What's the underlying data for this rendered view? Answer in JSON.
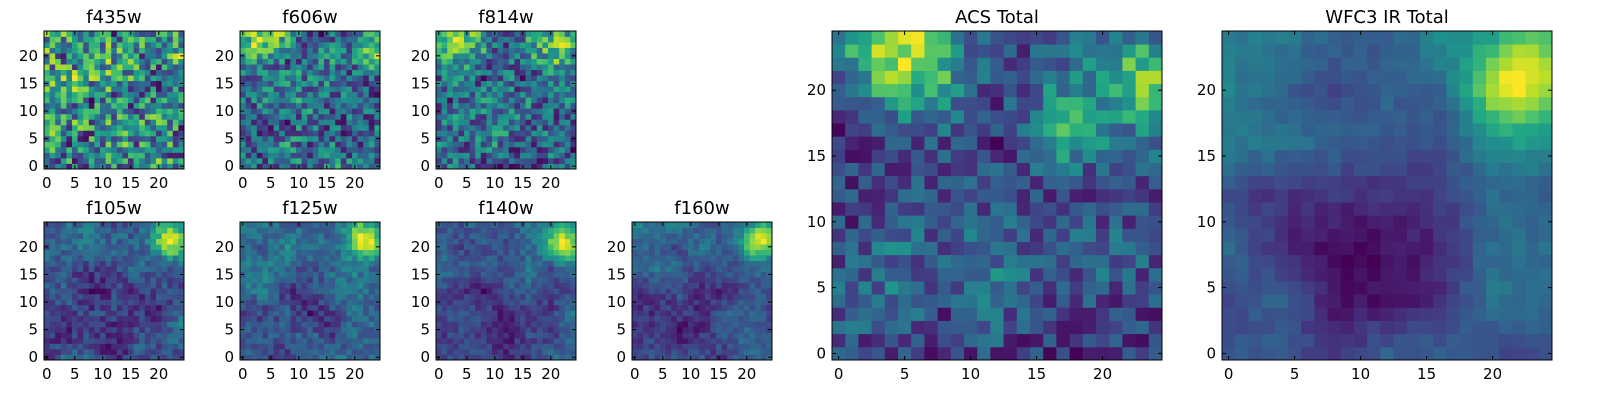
{
  "chart_data": {
    "type": "heatmap",
    "colormap": "viridis",
    "grid_size": 25,
    "panels": [
      {
        "id": "f435w",
        "title": "f435w",
        "seed": 11,
        "xticks": [
          "0",
          "5",
          "10",
          "15",
          "20"
        ],
        "yticks": [
          "0",
          "5",
          "10",
          "15",
          "20"
        ],
        "xlim": [
          0,
          24
        ],
        "ylim": [
          0,
          24
        ],
        "model": {
          "noise": 0.55,
          "base": 0.62,
          "blobs": [],
          "dip": 0.0
        }
      },
      {
        "id": "f606w",
        "title": "f606w",
        "seed": 23,
        "xticks": [
          "0",
          "5",
          "10",
          "15",
          "20"
        ],
        "yticks": [
          "0",
          "5",
          "10",
          "15",
          "20"
        ],
        "xlim": [
          0,
          24
        ],
        "ylim": [
          0,
          24
        ],
        "model": {
          "noise": 0.45,
          "base": 0.52,
          "blobs": [
            {
              "x": 3,
              "y": 23,
              "a": 0.35,
              "s": 3
            },
            {
              "x": 23,
              "y": 21,
              "a": 0.35,
              "s": 2.5
            }
          ],
          "dip": 0.0
        }
      },
      {
        "id": "f814w",
        "title": "f814w",
        "seed": 37,
        "xticks": [
          "0",
          "5",
          "10",
          "15",
          "20"
        ],
        "yticks": [
          "0",
          "5",
          "10",
          "15",
          "20"
        ],
        "xlim": [
          0,
          24
        ],
        "ylim": [
          0,
          24
        ],
        "model": {
          "noise": 0.4,
          "base": 0.56,
          "blobs": [
            {
              "x": 4,
              "y": 23,
              "a": 0.35,
              "s": 3
            },
            {
              "x": 22,
              "y": 21,
              "a": 0.35,
              "s": 2.5
            }
          ],
          "dip": 0.0
        }
      },
      {
        "id": "f105w",
        "title": "f105w",
        "seed": 41,
        "xticks": [
          "0",
          "5",
          "10",
          "15",
          "20"
        ],
        "yticks": [
          "0",
          "5",
          "10",
          "15",
          "20"
        ],
        "xlim": [
          0,
          24
        ],
        "ylim": [
          0,
          24
        ],
        "model": {
          "noise": 0.22,
          "base": 0.42,
          "blobs": [
            {
              "x": 22,
              "y": 21,
              "a": 0.6,
              "s": 2.2
            }
          ],
          "dip": 0.22
        }
      },
      {
        "id": "f125w",
        "title": "f125w",
        "seed": 53,
        "xticks": [
          "0",
          "5",
          "10",
          "15",
          "20"
        ],
        "yticks": [
          "0",
          "5",
          "10",
          "15",
          "20"
        ],
        "xlim": [
          0,
          24
        ],
        "ylim": [
          0,
          24
        ],
        "model": {
          "noise": 0.2,
          "base": 0.42,
          "blobs": [
            {
              "x": 22,
              "y": 21,
              "a": 0.6,
              "s": 2.2
            }
          ],
          "dip": 0.2
        }
      },
      {
        "id": "f140w",
        "title": "f140w",
        "seed": 67,
        "xticks": [
          "0",
          "5",
          "10",
          "15",
          "20"
        ],
        "yticks": [
          "0",
          "5",
          "10",
          "15",
          "20"
        ],
        "xlim": [
          0,
          24
        ],
        "ylim": [
          0,
          24
        ],
        "model": {
          "noise": 0.18,
          "base": 0.4,
          "blobs": [
            {
              "x": 22,
              "y": 21,
              "a": 0.65,
              "s": 2.4
            }
          ],
          "dip": 0.24
        }
      },
      {
        "id": "f160w",
        "title": "f160w",
        "seed": 79,
        "xticks": [
          "0",
          "5",
          "10",
          "15",
          "20"
        ],
        "yticks": [
          "0",
          "5",
          "10",
          "15",
          "20"
        ],
        "xlim": [
          0,
          24
        ],
        "ylim": [
          0,
          24
        ],
        "model": {
          "noise": 0.18,
          "base": 0.38,
          "blobs": [
            {
              "x": 22,
              "y": 21,
              "a": 0.7,
              "s": 2.2
            }
          ],
          "dip": 0.26
        }
      },
      {
        "id": "acs-total",
        "title": "ACS Total",
        "seed": 97,
        "xticks": [
          "0",
          "5",
          "10",
          "15",
          "20"
        ],
        "yticks": [
          "0",
          "5",
          "10",
          "15",
          "20"
        ],
        "xlim": [
          0,
          24
        ],
        "ylim": [
          0,
          24
        ],
        "model": {
          "noise": 0.3,
          "base": 0.5,
          "blobs": [
            {
              "x": 5,
              "y": 23,
              "a": 0.45,
              "s": 3
            },
            {
              "x": 23,
              "y": 21,
              "a": 0.45,
              "s": 2.5
            },
            {
              "x": 18,
              "y": 17,
              "a": 0.3,
              "s": 2
            }
          ],
          "dip": 0.0
        }
      },
      {
        "id": "wfc3-ir-total",
        "title": "WFC3 IR Total",
        "seed": 113,
        "xticks": [
          "0",
          "5",
          "10",
          "15",
          "20"
        ],
        "yticks": [
          "0",
          "5",
          "10",
          "15",
          "20"
        ],
        "xlim": [
          0,
          24
        ],
        "ylim": [
          0,
          24
        ],
        "model": {
          "noise": 0.1,
          "base": 0.42,
          "blobs": [
            {
              "x": 22,
              "y": 21,
              "a": 0.7,
              "s": 2.8
            }
          ],
          "dip": 0.28
        }
      }
    ]
  }
}
